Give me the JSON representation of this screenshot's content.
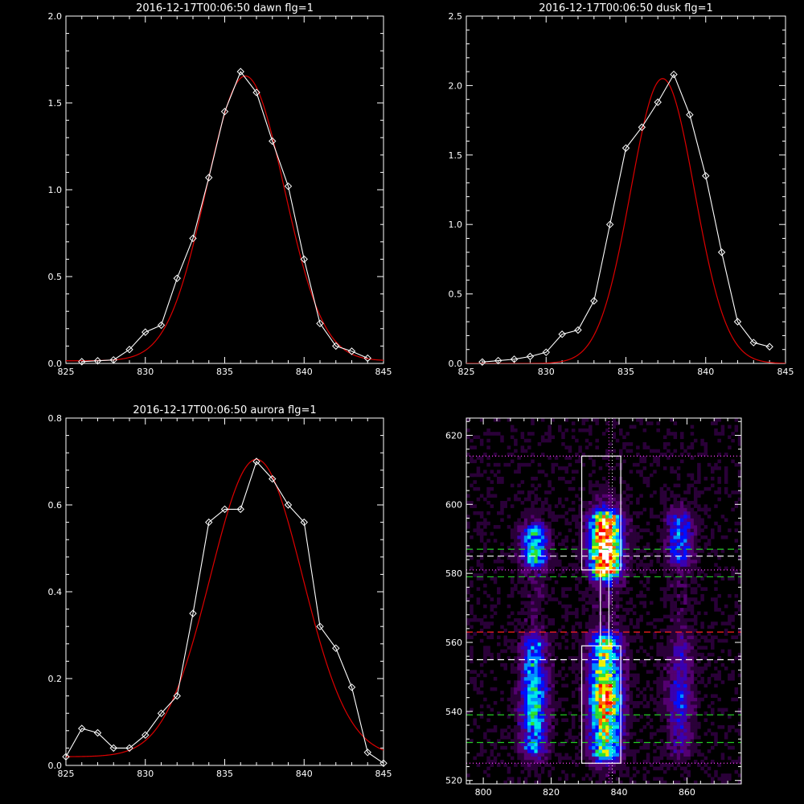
{
  "chart_data": [
    {
      "id": "dawn",
      "type": "line",
      "title": "2016-12-17T00:06:50 dawn flg=1",
      "xlim": [
        825,
        845
      ],
      "ylim": [
        0,
        2.0
      ],
      "x_ticks": [
        825,
        830,
        835,
        840,
        845
      ],
      "y_ticks": [
        "0.0",
        "0.5",
        "1.0",
        "1.5",
        "2.0"
      ],
      "grid": false,
      "series": [
        {
          "kind": "observed",
          "color": "#ffffff",
          "marker": "diamond",
          "x": [
            826,
            827,
            828,
            829,
            830,
            831,
            832,
            833,
            834,
            835,
            836,
            837,
            838,
            839,
            840,
            841,
            842,
            843,
            844
          ],
          "y": [
            0.01,
            0.015,
            0.02,
            0.08,
            0.18,
            0.22,
            0.49,
            0.72,
            1.07,
            1.45,
            1.68,
            1.56,
            1.28,
            1.02,
            0.6,
            0.23,
            0.1,
            0.07,
            0.03
          ]
        },
        {
          "kind": "fit",
          "color": "#dd0000",
          "gaussian": {
            "amplitude": 1.64,
            "center": 836.3,
            "sigma": 2.45,
            "offset": 0.015
          }
        }
      ]
    },
    {
      "id": "dusk",
      "type": "line",
      "title": "2016-12-17T00:06:50 dusk flg=1",
      "xlim": [
        825,
        845
      ],
      "ylim": [
        0,
        2.5
      ],
      "x_ticks": [
        825,
        830,
        835,
        840,
        845
      ],
      "y_ticks": [
        "0.0",
        "0.5",
        "1.0",
        "1.5",
        "2.0",
        "2.5"
      ],
      "grid": false,
      "series": [
        {
          "kind": "observed",
          "color": "#ffffff",
          "marker": "diamond",
          "x": [
            826,
            827,
            828,
            829,
            830,
            831,
            832,
            833,
            834,
            835,
            836,
            837,
            838,
            839,
            840,
            841,
            842,
            843,
            844
          ],
          "y": [
            0.01,
            0.02,
            0.03,
            0.05,
            0.08,
            0.21,
            0.24,
            0.45,
            1.0,
            1.55,
            1.7,
            1.88,
            2.08,
            1.79,
            1.35,
            0.8,
            0.3,
            0.15,
            0.12
          ]
        },
        {
          "kind": "fit",
          "color": "#dd0000",
          "gaussian": {
            "amplitude": 2.05,
            "center": 837.3,
            "sigma": 2.0,
            "offset": 0.0
          }
        }
      ]
    },
    {
      "id": "aurora",
      "type": "line",
      "title": "2016-12-17T00:06:50 aurora flg=1",
      "xlim": [
        825,
        845
      ],
      "ylim": [
        0,
        0.8
      ],
      "x_ticks": [
        825,
        830,
        835,
        840,
        845
      ],
      "y_ticks": [
        "0.0",
        "0.2",
        "0.4",
        "0.6",
        "0.8"
      ],
      "grid": false,
      "series": [
        {
          "kind": "observed",
          "color": "#ffffff",
          "marker": "diamond",
          "x": [
            825,
            826,
            827,
            828,
            829,
            830,
            831,
            832,
            833,
            834,
            835,
            836,
            837,
            838,
            839,
            840,
            841,
            842,
            843,
            844,
            845
          ],
          "y": [
            0.02,
            0.085,
            0.075,
            0.04,
            0.04,
            0.07,
            0.12,
            0.16,
            0.35,
            0.56,
            0.59,
            0.59,
            0.7,
            0.66,
            0.6,
            0.56,
            0.32,
            0.27,
            0.18,
            0.03,
            0.005
          ]
        },
        {
          "kind": "fit",
          "color": "#dd0000",
          "gaussian": {
            "amplitude": 0.685,
            "center": 837.0,
            "sigma": 2.9,
            "offset": 0.02
          }
        }
      ]
    },
    {
      "id": "image",
      "type": "heatmap",
      "xlim": [
        795,
        876
      ],
      "ylim": [
        519,
        625
      ],
      "x_ticks": [
        "800",
        "820",
        "840",
        "860"
      ],
      "y_ticks": [
        "520",
        "540",
        "560",
        "580",
        "600",
        "620"
      ],
      "colormap": [
        "#000000",
        "#2a0038",
        "#540070",
        "#3a00b0",
        "#0010ff",
        "#0090ff",
        "#00e8e8",
        "#30e030",
        "#f0f000",
        "#ff6a00",
        "#ff0000",
        "#ffffff"
      ],
      "columns": [
        {
          "x": 815,
          "width": 5,
          "blobs": [
            {
              "y0": 583,
              "y1": 592,
              "peak": 0.55
            },
            {
              "y0": 528,
              "y1": 559,
              "peak": 0.55
            }
          ]
        },
        {
          "x": 836,
          "width": 6,
          "blobs": [
            {
              "y0": 580,
              "y1": 596,
              "peak": 0.98
            },
            {
              "y0": 527,
              "y1": 560,
              "peak": 0.82
            }
          ]
        },
        {
          "x": 858,
          "width": 5,
          "blobs": [
            {
              "y0": 583,
              "y1": 596,
              "peak": 0.38
            },
            {
              "y0": 528,
              "y1": 559,
              "peak": 0.3
            }
          ]
        }
      ],
      "boxes": [
        {
          "x0": 829,
          "x1": 840.5,
          "y0": 581,
          "y1": 614,
          "color": "#ffffff"
        },
        {
          "x0": 829,
          "x1": 840.5,
          "y0": 525,
          "y1": 559,
          "color": "#ffffff"
        },
        {
          "x0": 834.5,
          "x1": 837,
          "y0": 559,
          "y1": 581,
          "color": "#ffffff"
        }
      ],
      "hlines": [
        {
          "y": 614,
          "color": "#ff40ff",
          "style": "dotted"
        },
        {
          "y": 525,
          "color": "#ff40ff",
          "style": "dotted"
        },
        {
          "y": 581,
          "color": "#ff40ff",
          "style": "dotted"
        },
        {
          "y": 587,
          "color": "#22cc22",
          "style": "dashed"
        },
        {
          "y": 585,
          "color": "#ffffff",
          "style": "dashed"
        },
        {
          "y": 579,
          "color": "#22cc22",
          "style": "dashed"
        },
        {
          "y": 563,
          "color": "#ff2020",
          "style": "dashed"
        },
        {
          "y": 555,
          "color": "#ffffff",
          "style": "dashed"
        },
        {
          "y": 539,
          "color": "#22cc22",
          "style": "dashed"
        },
        {
          "y": 531,
          "color": "#22cc22",
          "style": "dashed"
        }
      ],
      "vlines": [
        {
          "x": 837,
          "color": "#ff40ff",
          "style": "dotted"
        },
        {
          "x": 838,
          "color": "#ffffff",
          "style": "dotted"
        }
      ]
    }
  ]
}
